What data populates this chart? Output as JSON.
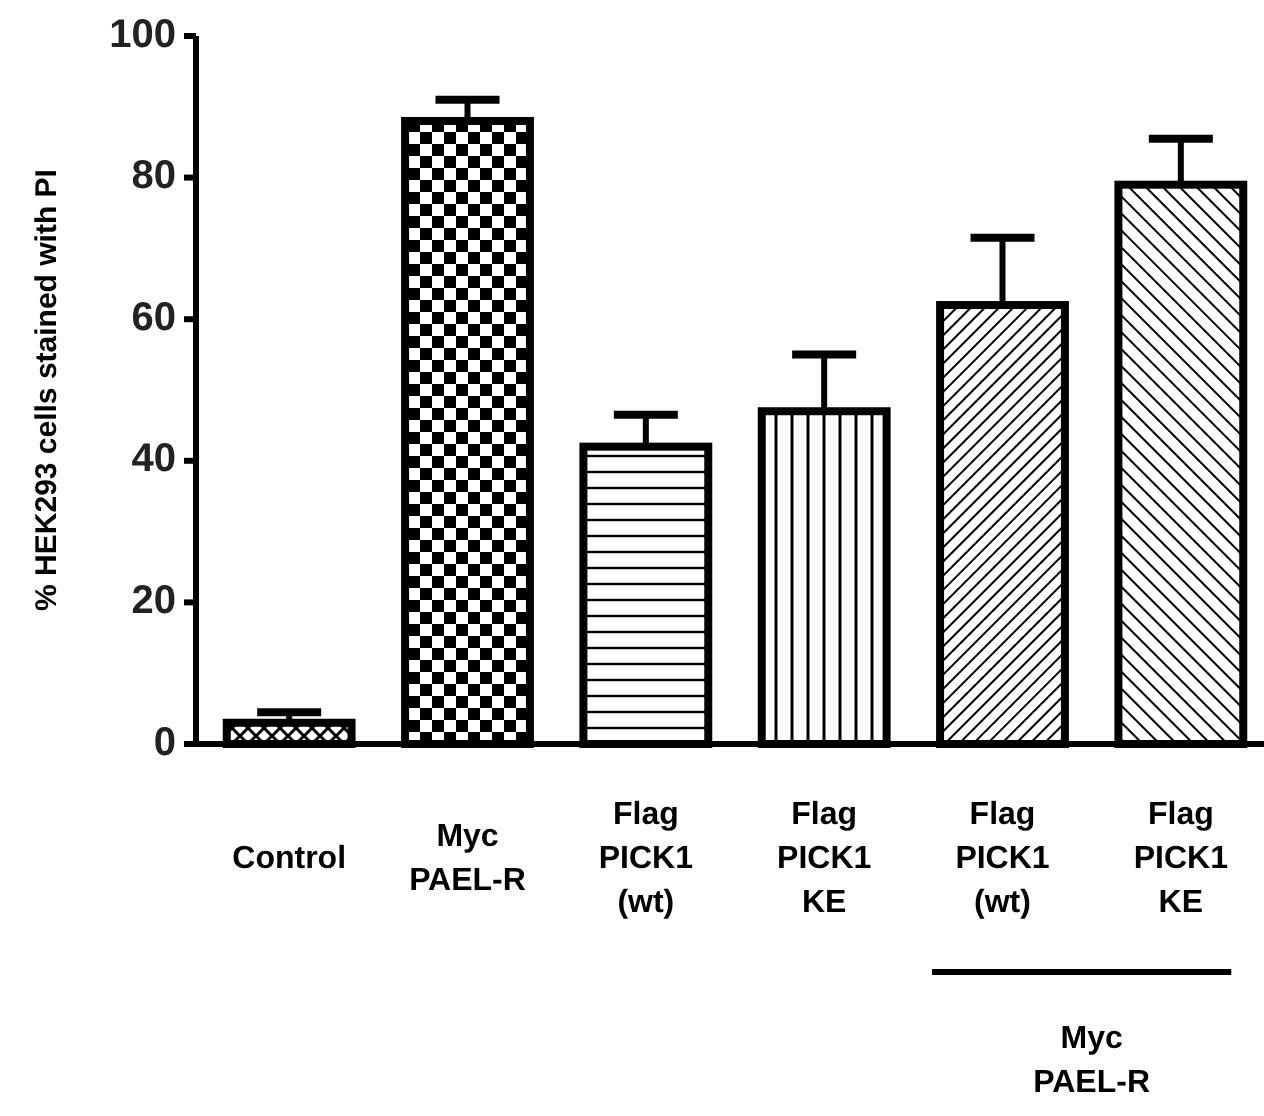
{
  "chart_data": {
    "type": "bar",
    "ylabel": "% HEK293 cells  stained with PI",
    "categories": [
      "Control",
      "Myc\nPAEL-R",
      "Flag\nPICK1\n(wt)",
      "Flag\nPICK1\nKE",
      "Flag\nPICK1\n(wt)",
      "Flag\nPICK1\nKE"
    ],
    "values": [
      3,
      88,
      42,
      47,
      62,
      79
    ],
    "errors": [
      1.5,
      3,
      4.5,
      8,
      9.5,
      6.5
    ],
    "color": "#000000",
    "ylim": [
      0,
      100
    ],
    "yticks": [
      0,
      20,
      40,
      60,
      80,
      100
    ],
    "annotations": [
      "Myc\nPAEL-R"
    ]
  }
}
